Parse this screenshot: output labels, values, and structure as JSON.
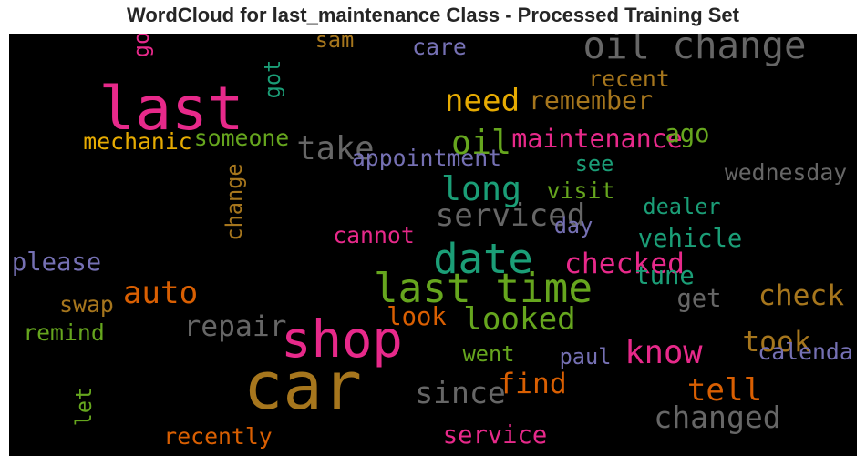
{
  "chart_data": {
    "type": "wordcloud",
    "title": "WordCloud for last_maintenance Class - Processed Training Set",
    "background": "#000000",
    "words": [
      {
        "text": "car",
        "weight": 1.0,
        "color": "#A6761D"
      },
      {
        "text": "last",
        "weight": 0.9,
        "color": "#E7298A"
      },
      {
        "text": "shop",
        "weight": 0.72,
        "color": "#E7298A"
      },
      {
        "text": "date",
        "weight": 0.55,
        "color": "#1B9E77"
      },
      {
        "text": "last time",
        "weight": 0.53,
        "color": "#66A61E"
      },
      {
        "text": "oil change",
        "weight": 0.47,
        "color": "#666666"
      },
      {
        "text": "long",
        "weight": 0.4,
        "color": "#1B9E77"
      },
      {
        "text": "oil",
        "weight": 0.4,
        "color": "#66A61E"
      },
      {
        "text": "take",
        "weight": 0.38,
        "color": "#666666"
      },
      {
        "text": "know",
        "weight": 0.38,
        "color": "#E7298A"
      },
      {
        "text": "auto",
        "weight": 0.36,
        "color": "#D95F02"
      },
      {
        "text": "serviced",
        "weight": 0.36,
        "color": "#666666"
      },
      {
        "text": "looked",
        "weight": 0.36,
        "color": "#66A61E"
      },
      {
        "text": "need",
        "weight": 0.36,
        "color": "#E6AB02"
      },
      {
        "text": "tell",
        "weight": 0.36,
        "color": "#D95F02"
      },
      {
        "text": "since",
        "weight": 0.34,
        "color": "#666666"
      },
      {
        "text": "changed",
        "weight": 0.34,
        "color": "#666666"
      },
      {
        "text": "repair",
        "weight": 0.31,
        "color": "#666666"
      },
      {
        "text": "checked",
        "weight": 0.31,
        "color": "#E7298A"
      },
      {
        "text": "check",
        "weight": 0.31,
        "color": "#A6761D"
      },
      {
        "text": "took",
        "weight": 0.31,
        "color": "#A6761D"
      },
      {
        "text": "find",
        "weight": 0.31,
        "color": "#D95F02"
      },
      {
        "text": "remember",
        "weight": 0.26,
        "color": "#A6761D"
      },
      {
        "text": "maintenance",
        "weight": 0.26,
        "color": "#E7298A"
      },
      {
        "text": "ago",
        "weight": 0.24,
        "color": "#66A61E"
      },
      {
        "text": "please",
        "weight": 0.24,
        "color": "#7570B3"
      },
      {
        "text": "vehicle",
        "weight": 0.24,
        "color": "#1B9E77"
      },
      {
        "text": "tune",
        "weight": 0.24,
        "color": "#1B9E77"
      },
      {
        "text": "get",
        "weight": 0.24,
        "color": "#666666"
      },
      {
        "text": "look",
        "weight": 0.24,
        "color": "#D95F02"
      },
      {
        "text": "service",
        "weight": 0.24,
        "color": "#E7298A"
      },
      {
        "text": "mechanic",
        "weight": 0.2,
        "color": "#E6AB02"
      },
      {
        "text": "someone",
        "weight": 0.2,
        "color": "#66A61E"
      },
      {
        "text": "appointment",
        "weight": 0.2,
        "color": "#7570B3"
      },
      {
        "text": "care",
        "weight": 0.2,
        "color": "#7570B3"
      },
      {
        "text": "recent",
        "weight": 0.2,
        "color": "#A6761D"
      },
      {
        "text": "see",
        "weight": 0.18,
        "color": "#1B9E77"
      },
      {
        "text": "wednesday",
        "weight": 0.2,
        "color": "#666666"
      },
      {
        "text": "visit",
        "weight": 0.2,
        "color": "#66A61E"
      },
      {
        "text": "dealer",
        "weight": 0.18,
        "color": "#1B9E77"
      },
      {
        "text": "cannot",
        "weight": 0.2,
        "color": "#E7298A"
      },
      {
        "text": "day",
        "weight": 0.18,
        "color": "#7570B3"
      },
      {
        "text": "swap",
        "weight": 0.2,
        "color": "#A6761D"
      },
      {
        "text": "remind",
        "weight": 0.2,
        "color": "#66A61E"
      },
      {
        "text": "went",
        "weight": 0.18,
        "color": "#66A61E"
      },
      {
        "text": "paul",
        "weight": 0.18,
        "color": "#7570B3"
      },
      {
        "text": "calendar",
        "weight": 0.2,
        "color": "#7570B3"
      },
      {
        "text": "recently",
        "weight": 0.2,
        "color": "#D95F02"
      },
      {
        "text": "sam",
        "weight": 0.18,
        "color": "#A6761D"
      },
      {
        "text": "go",
        "weight": 0.18,
        "color": "#E7298A"
      },
      {
        "text": "got",
        "weight": 0.18,
        "color": "#1B9E77"
      },
      {
        "text": "change",
        "weight": 0.18,
        "color": "#A6761D"
      },
      {
        "text": "let",
        "weight": 0.18,
        "color": "#66A61E"
      }
    ]
  }
}
